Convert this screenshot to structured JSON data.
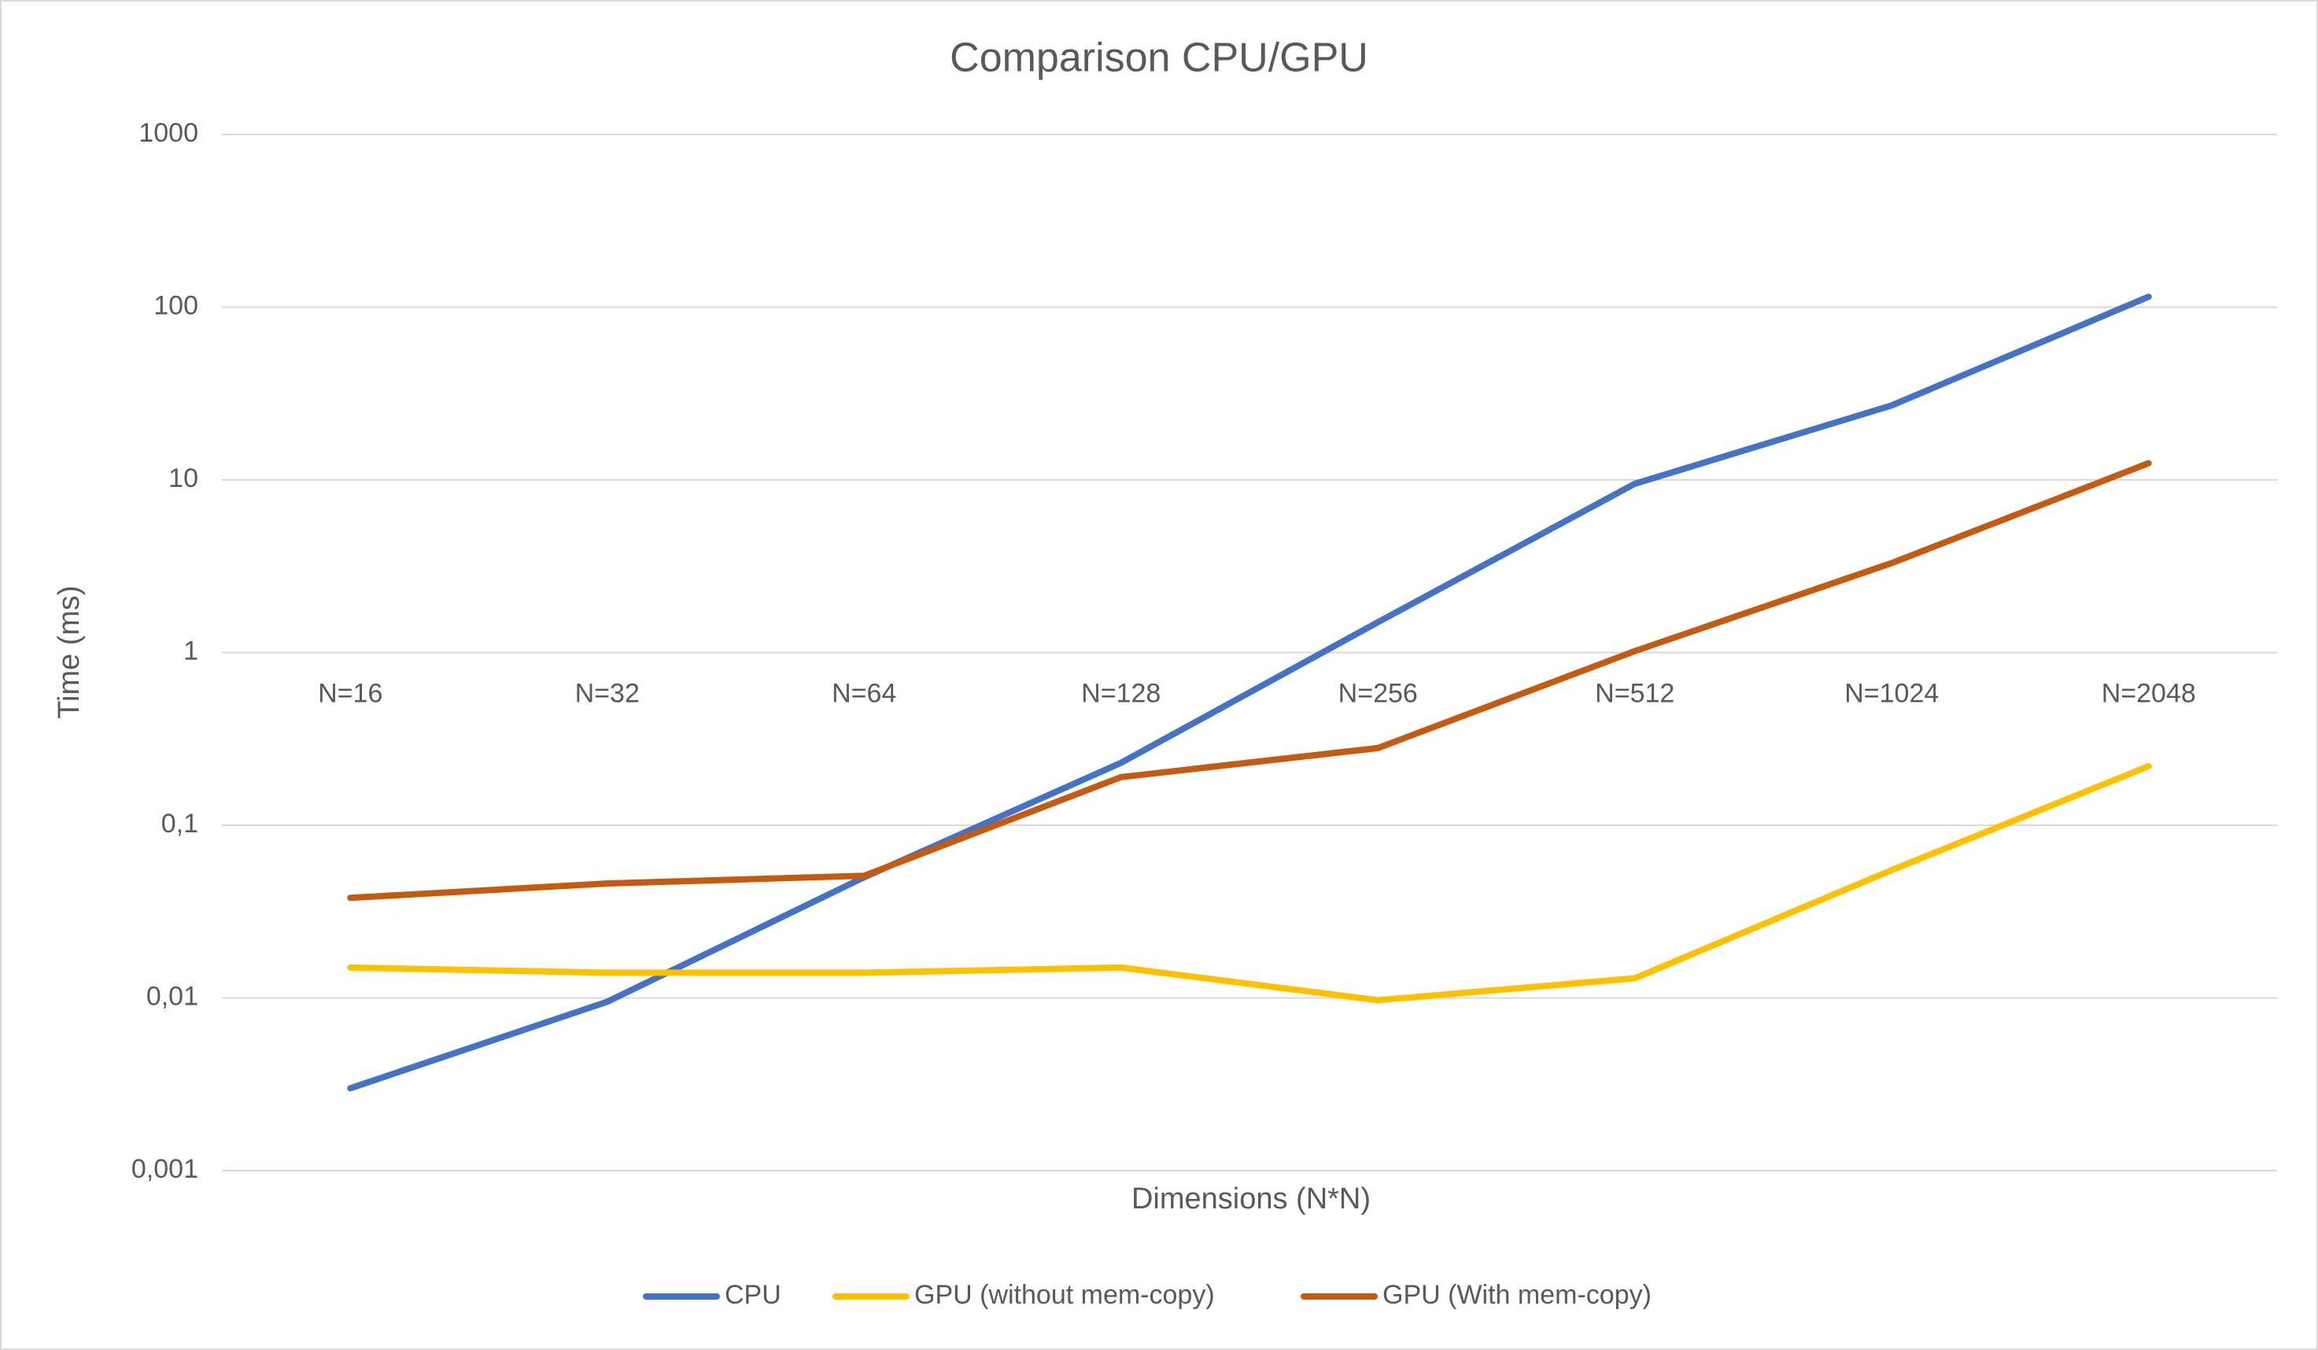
{
  "chart_data": {
    "type": "line",
    "title": "Comparison CPU/GPU",
    "x_label": "Dimensions (N*N)",
    "y_label": "Time (ms)",
    "categories": [
      "N=16",
      "N=32",
      "N=64",
      "N=128",
      "N=256",
      "N=512",
      "N=1024",
      "N=2048"
    ],
    "log_y": true,
    "grid": true,
    "legend": "bottom",
    "ylim": [
      0.001,
      1000
    ],
    "yticks": [
      {
        "value": 0.001,
        "label": "0,001"
      },
      {
        "value": 0.01,
        "label": "0,01"
      },
      {
        "value": 0.1,
        "label": "0,1"
      },
      1,
      10,
      100,
      1000
    ],
    "series": [
      {
        "name": "CPU",
        "color": "#4472c4",
        "values": [
          0.003,
          0.0095,
          0.05,
          0.23,
          1.5,
          9.5,
          27,
          115
        ]
      },
      {
        "name": "GPU (without mem-copy)",
        "color": "#ffc000",
        "values": [
          0.015,
          0.014,
          0.014,
          0.015,
          0.0097,
          0.013,
          0.055,
          0.22
        ]
      },
      {
        "name": "GPU (With mem-copy)",
        "color": "#c55a11",
        "values": [
          0.038,
          0.046,
          0.051,
          0.19,
          0.28,
          1.02,
          3.3,
          12.5
        ]
      }
    ]
  }
}
